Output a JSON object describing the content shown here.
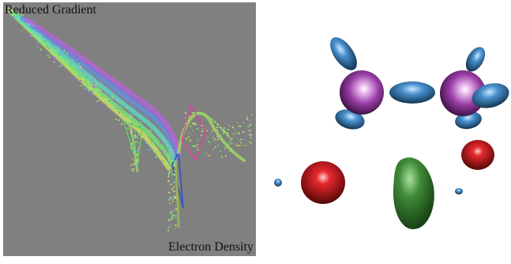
{
  "plot": {
    "y_axis_label": "Reduced Gradient",
    "x_axis_label": "Electron Density",
    "background_color": "#808080",
    "scatter_colors": [
      "#c8e060",
      "#78e878",
      "#60d8c8",
      "#6890e0",
      "#c060e0"
    ]
  },
  "render": {
    "colors": {
      "atom": "#9a3ea6",
      "blue_surface": "#2f78b8",
      "red_surface": "#d8141c",
      "green_surface": "#2f7a2a"
    }
  }
}
